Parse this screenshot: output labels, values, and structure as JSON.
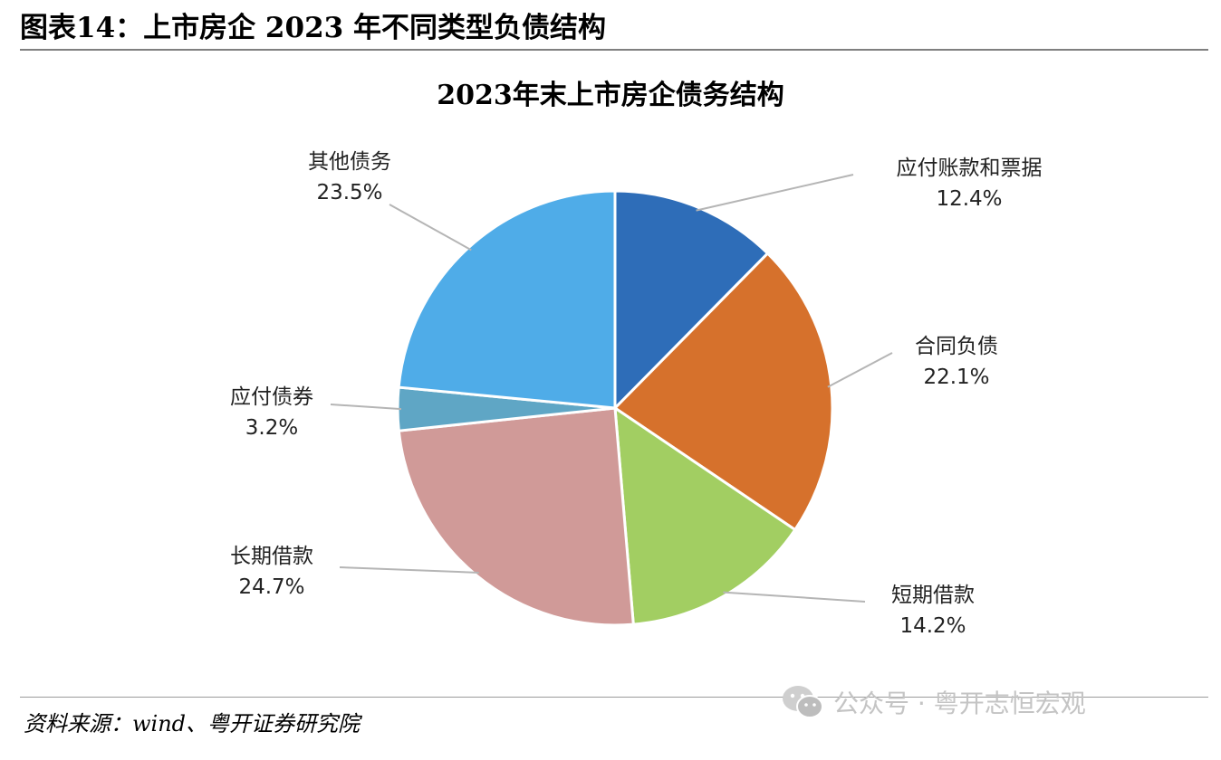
{
  "figure_header": "图表14：上市房企 2023 年不同类型负债结构",
  "source_note": "资料来源：wind、粤开证券研究院",
  "watermark_text": "公众号 · 粤开志恒宏观",
  "chart_data": {
    "type": "pie",
    "title": "2023年末上市房企债务结构",
    "unit": "%",
    "slices": [
      {
        "label": "应付账款和票据",
        "value": 12.4,
        "value_label": "12.4%",
        "color": "#2E6DB8"
      },
      {
        "label": "合同负债",
        "value": 22.1,
        "value_label": "22.1%",
        "color": "#D6712C"
      },
      {
        "label": "短期借款",
        "value": 14.2,
        "value_label": "14.2%",
        "color": "#A2CE62"
      },
      {
        "label": "长期借款",
        "value": 24.7,
        "value_label": "24.7%",
        "color": "#D09A98"
      },
      {
        "label": "应付债券",
        "value": 3.2,
        "value_label": "3.2%",
        "color": "#5FA6C5"
      },
      {
        "label": "其他债务",
        "value": 23.5,
        "value_label": "23.5%",
        "color": "#4FACE8"
      }
    ],
    "start_angle": "12 o'clock",
    "direction": "clockwise",
    "labels": "outside with leader lines"
  }
}
